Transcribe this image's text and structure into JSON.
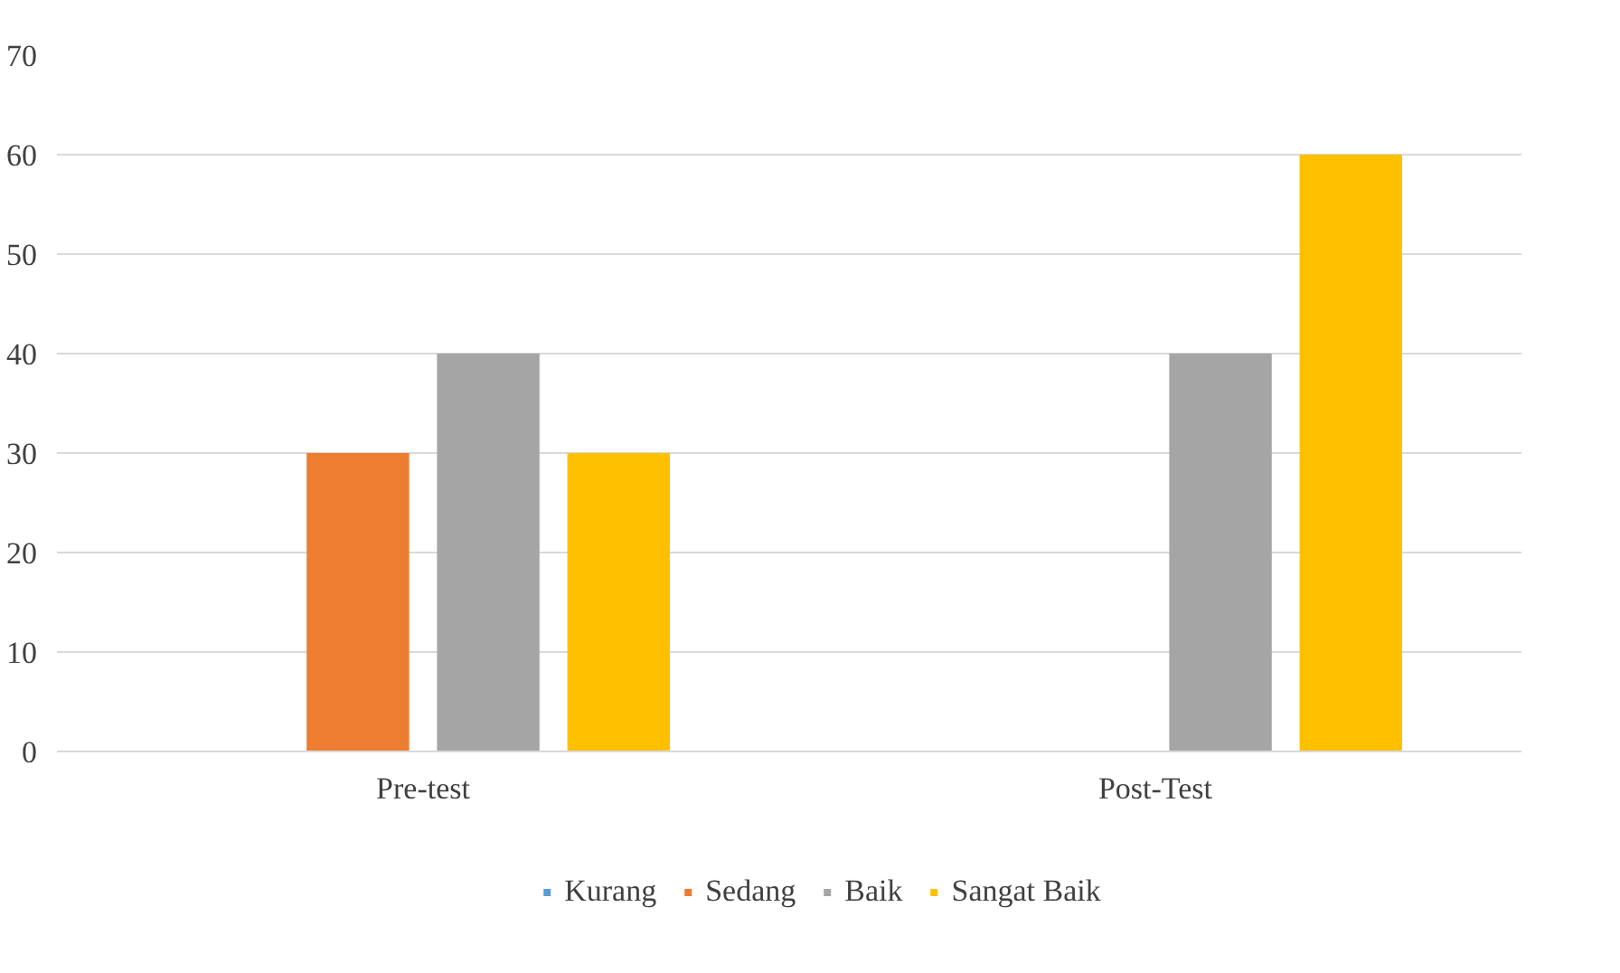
{
  "chart_data": {
    "type": "bar",
    "categories": [
      "Pre-test",
      "Post-Test"
    ],
    "series": [
      {
        "name": "Kurang",
        "color": "#5b9bd5",
        "values": [
          0,
          0
        ]
      },
      {
        "name": "Sedang",
        "color": "#ed7d31",
        "values": [
          30,
          0
        ]
      },
      {
        "name": "Baik",
        "color": "#a5a5a5",
        "values": [
          40,
          40
        ]
      },
      {
        "name": "Sangat Baik",
        "color": "#ffc000",
        "values": [
          30,
          60
        ]
      }
    ],
    "ylim": [
      0,
      70
    ],
    "yticks": [
      0,
      10,
      20,
      30,
      40,
      50,
      60,
      70
    ],
    "grid": "y",
    "legend": "bottom"
  }
}
